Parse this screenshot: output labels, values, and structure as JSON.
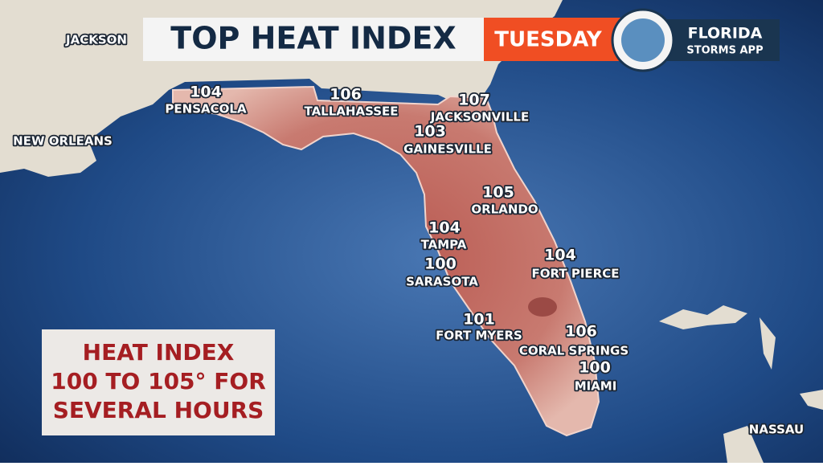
{
  "header": {
    "title": "TOP HEAT INDEX",
    "day": "TUESDAY"
  },
  "logo": {
    "line1": "FLORIDA",
    "line2": "STORMS APP"
  },
  "reference_labels": [
    "JACKSON",
    "NEW ORLEANS",
    "NASSAU"
  ],
  "cities": [
    {
      "name": "PENSACOLA",
      "value": 104
    },
    {
      "name": "TALLAHASSEE",
      "value": 106
    },
    {
      "name": "JACKSONVILLE",
      "value": 107
    },
    {
      "name": "GAINESVILLE",
      "value": 103
    },
    {
      "name": "ORLANDO",
      "value": 105
    },
    {
      "name": "TAMPA",
      "value": 104
    },
    {
      "name": "SARASOTA",
      "value": 100
    },
    {
      "name": "FORT PIERCE",
      "value": 104
    },
    {
      "name": "FORT MYERS",
      "value": 101
    },
    {
      "name": "CORAL SPRINGS",
      "value": 106
    },
    {
      "name": "MIAMI",
      "value": 100
    }
  ],
  "info_box": [
    "HEAT INDEX",
    "100 TO 105° FOR",
    "SEVERAL HOURS"
  ]
}
